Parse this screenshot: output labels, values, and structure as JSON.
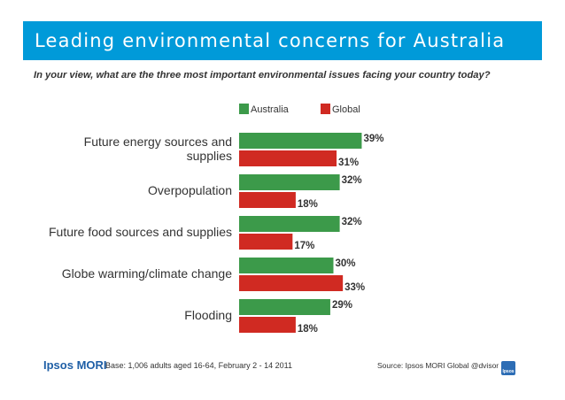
{
  "header": {
    "title": "Leading environmental concerns for Australia",
    "subtitle": "In your view, what are the three most important environmental issues facing your country today?"
  },
  "chart_data": {
    "type": "bar",
    "orientation": "horizontal",
    "categories": [
      [
        "Future energy sources and",
        "supplies"
      ],
      [
        "Overpopulation"
      ],
      [
        "Future food sources and supplies"
      ],
      [
        "Globe warming/climate change"
      ],
      [
        "Flooding"
      ]
    ],
    "series": [
      {
        "name": "Australia",
        "color": "#3c9a4a",
        "values": [
          39,
          32,
          32,
          30,
          29
        ]
      },
      {
        "name": "Global",
        "color": "#d02a22",
        "values": [
          31,
          18,
          17,
          33,
          18
        ]
      }
    ],
    "value_suffix": "%",
    "xlim": [
      0,
      45
    ],
    "grid": false,
    "legend": "top"
  },
  "footer": {
    "logo": "Ipsos MORI",
    "base": "Base: 1,006 adults aged 16-64, February 2 - 14 2011",
    "source": "Source: Ipsos MORI Global @dvisor",
    "badge": "Ipsos"
  }
}
